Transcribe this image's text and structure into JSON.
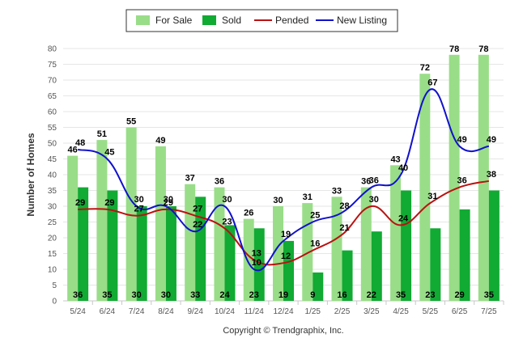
{
  "chart_data": {
    "type": "bar",
    "ylabel": "Number of Homes",
    "xlabel": "",
    "ylim": [
      0,
      80
    ],
    "ytick_step": 5,
    "grid": true,
    "legend_position": "top-center",
    "categories": [
      "5/24",
      "6/24",
      "7/24",
      "8/24",
      "9/24",
      "10/24",
      "11/24",
      "12/24",
      "1/25",
      "2/25",
      "3/25",
      "4/25",
      "5/25",
      "6/25",
      "7/25"
    ],
    "series": [
      {
        "name": "For Sale",
        "kind": "bar",
        "color": "#99dd88",
        "values": [
          46,
          51,
          55,
          49,
          37,
          36,
          26,
          30,
          31,
          33,
          36,
          43,
          72,
          78,
          78
        ]
      },
      {
        "name": "Sold",
        "kind": "bar",
        "color": "#11aa33",
        "values": [
          36,
          35,
          30,
          30,
          33,
          24,
          23,
          19,
          9,
          16,
          22,
          35,
          23,
          29,
          35
        ]
      },
      {
        "name": "Pended",
        "kind": "line",
        "color": "#bb1111",
        "values": [
          29,
          29,
          27,
          29,
          27,
          23,
          13,
          12,
          16,
          21,
          30,
          24,
          31,
          36,
          38
        ]
      },
      {
        "name": "New Listing",
        "kind": "line",
        "color": "#1111cc",
        "values": [
          48,
          45,
          30,
          30,
          22,
          30,
          10,
          19,
          25,
          28,
          36,
          40,
          67,
          49,
          49
        ]
      }
    ]
  },
  "copyright": "Copyright © Trendgraphix, Inc."
}
